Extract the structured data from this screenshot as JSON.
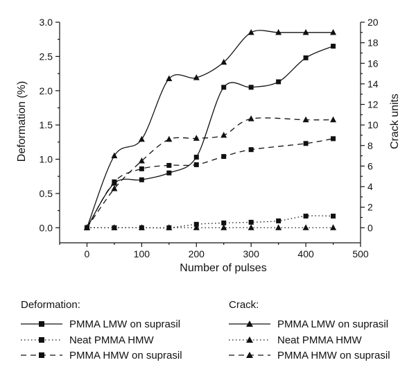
{
  "chart_data": {
    "type": "line",
    "x_axis": {
      "label": "Number of pulses",
      "range": [
        -50,
        500
      ],
      "ticks": [
        0,
        100,
        200,
        300,
        400,
        500
      ]
    },
    "y_left": {
      "label": "Deformation (%)",
      "range": [
        -0.22,
        3.0
      ],
      "ticks": [
        0.0,
        0.5,
        1.0,
        1.5,
        2.0,
        2.5,
        3.0
      ],
      "tick_labels": [
        "0.0",
        "0.5",
        "1.0",
        "1.5",
        "2.0",
        "2.5",
        "3.0"
      ]
    },
    "y_right": {
      "label": "Crack units",
      "range": [
        -1.4667,
        20
      ],
      "ticks": [
        0,
        2,
        4,
        6,
        8,
        10,
        12,
        14,
        16,
        18,
        20
      ],
      "tick_labels": [
        "0",
        "2",
        "4",
        "6",
        "8",
        "10",
        "12",
        "14",
        "16",
        "18",
        "20"
      ]
    },
    "legend_groups": [
      {
        "title": "Deformation:"
      },
      {
        "title": "Crack:"
      }
    ],
    "series": [
      {
        "name": "PMMA LMW on suprasil",
        "group": "Deformation",
        "axis": "left",
        "marker": "square",
        "dash": "solid",
        "x": [
          0,
          50,
          100,
          150,
          200,
          250,
          300,
          350,
          400,
          450
        ],
        "y": [
          0.0,
          0.65,
          0.7,
          0.8,
          1.03,
          2.05,
          2.05,
          2.13,
          2.48,
          2.65
        ]
      },
      {
        "name": "Neat PMMA HMW",
        "group": "Deformation",
        "axis": "left",
        "marker": "square",
        "dash": "dotted",
        "x": [
          0,
          50,
          100,
          150,
          200,
          250,
          300,
          350,
          400,
          450
        ],
        "y": [
          0.0,
          0.0,
          0.0,
          0.0,
          0.05,
          0.07,
          0.08,
          0.1,
          0.17,
          0.17
        ]
      },
      {
        "name": "PMMA HMW on suprasil",
        "group": "Deformation",
        "axis": "left",
        "marker": "square",
        "dash": "dashed",
        "x": [
          0,
          50,
          100,
          150,
          200,
          250,
          300,
          350,
          400,
          450
        ],
        "y": [
          0.0,
          0.67,
          0.86,
          0.91,
          0.92,
          1.04,
          1.14,
          null,
          1.23,
          1.3
        ]
      },
      {
        "name": "PMMA LMW on suprasil",
        "group": "Crack",
        "axis": "right",
        "marker": "triangle",
        "dash": "solid",
        "x": [
          0,
          50,
          100,
          150,
          200,
          250,
          300,
          350,
          400,
          450
        ],
        "y": [
          0,
          7,
          8.6,
          14.5,
          14.6,
          16.1,
          19,
          19,
          19,
          19
        ]
      },
      {
        "name": "Neat PMMA HMW",
        "group": "Crack",
        "axis": "right",
        "marker": "triangle",
        "dash": "dotted",
        "x": [
          0,
          50,
          100,
          150,
          200,
          250,
          300,
          350,
          400,
          450
        ],
        "y": [
          0,
          0,
          0,
          0,
          0,
          0,
          0,
          0,
          0,
          0
        ]
      },
      {
        "name": "PMMA HMW on suprasil",
        "group": "Crack",
        "axis": "right",
        "marker": "triangle",
        "dash": "dashed",
        "x": [
          0,
          50,
          100,
          150,
          200,
          250,
          300,
          350,
          400,
          450
        ],
        "y": [
          0,
          3.8,
          6.5,
          8.6,
          8.7,
          9,
          10.6,
          null,
          10.5,
          10.5
        ]
      }
    ]
  }
}
